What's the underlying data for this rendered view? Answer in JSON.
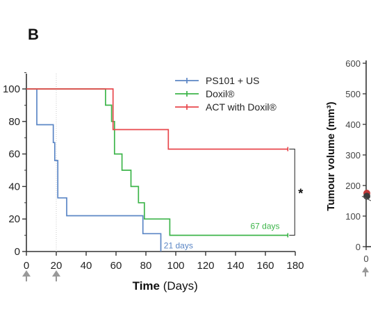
{
  "panel_letter": "B",
  "colors": {
    "ps101": "#5b86c5",
    "doxil": "#3db54a",
    "act": "#e8474c",
    "axis": "#333333"
  },
  "chart_data": [
    {
      "type": "line",
      "subtype": "kaplan-meier step",
      "xlabel_bold": "Time",
      "xlabel_unit": " (Days)",
      "ylabel": "",
      "xlim": [
        0,
        180
      ],
      "ylim": [
        0,
        100
      ],
      "x_ticks": [
        0,
        20,
        40,
        60,
        80,
        100,
        120,
        140,
        160,
        180
      ],
      "y_ticks": [
        0,
        20,
        40,
        60,
        80,
        100
      ],
      "grid": false,
      "legend_position": "top-right",
      "treatment_markers_days": [
        0,
        20
      ],
      "series": [
        {
          "name": "PS101 + US",
          "color": "#5b86c5",
          "steps": [
            [
              0,
              100
            ],
            [
              7,
              100
            ],
            [
              7,
              78
            ],
            [
              18,
              78
            ],
            [
              18,
              67
            ],
            [
              19,
              67
            ],
            [
              19,
              56
            ],
            [
              21,
              56
            ],
            [
              21,
              33
            ],
            [
              27,
              33
            ],
            [
              27,
              22
            ],
            [
              78,
              22
            ],
            [
              78,
              11
            ],
            [
              90,
              11
            ],
            [
              90,
              0
            ]
          ],
          "end_label": "21 days"
        },
        {
          "name": "Doxil®",
          "color": "#3db54a",
          "steps": [
            [
              0,
              100
            ],
            [
              53,
              100
            ],
            [
              53,
              90
            ],
            [
              57,
              90
            ],
            [
              57,
              80
            ],
            [
              59,
              80
            ],
            [
              59,
              60
            ],
            [
              64,
              60
            ],
            [
              64,
              50
            ],
            [
              70,
              50
            ],
            [
              70,
              40
            ],
            [
              75,
              40
            ],
            [
              75,
              30
            ],
            [
              79,
              30
            ],
            [
              79,
              20
            ],
            [
              96,
              20
            ],
            [
              96,
              10
            ],
            [
              175,
              10
            ]
          ],
          "end_label": "67 days"
        },
        {
          "name": "ACT with Doxil®",
          "color": "#e8474c",
          "steps": [
            [
              0,
              100
            ],
            [
              58,
              100
            ],
            [
              58,
              75
            ],
            [
              95,
              75
            ],
            [
              95,
              63
            ],
            [
              175,
              63
            ]
          ]
        }
      ],
      "annotations": [
        {
          "text": "21 days",
          "color": "#5b86c5",
          "x": 92,
          "y": 1
        },
        {
          "text": "67 days",
          "color": "#3db54a",
          "x": 150,
          "y": 13
        }
      ],
      "significance": {
        "text": "*",
        "between": [
          "Doxil®",
          "ACT with Doxil®"
        ]
      }
    },
    {
      "type": "line",
      "partial": true,
      "ylabel": "Tumour volume (mm³)",
      "ylim": [
        0,
        600
      ],
      "y_ticks": [
        0,
        100,
        200,
        300,
        400,
        500,
        600
      ],
      "x_ticks_visible": [
        "0"
      ]
    }
  ]
}
